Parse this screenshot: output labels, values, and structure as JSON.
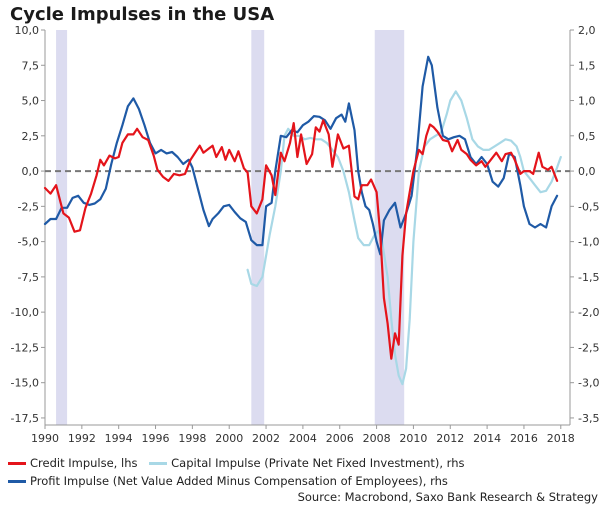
{
  "title": "Cycle Impulses in the USA",
  "source": "Source: Macrobond, Saxo Bank Research & Strategy",
  "colors": {
    "credit": "#e4141b",
    "capital": "#a8d8e6",
    "profit": "#1f5aa6",
    "recession": "#dcdcf0",
    "zero": "#777777"
  },
  "chart_data": {
    "type": "line",
    "title": "Cycle Impulses in the USA",
    "x_ticks": [
      "1990",
      "1992",
      "1994",
      "1996",
      "1998",
      "2000",
      "2002",
      "2004",
      "2006",
      "2008",
      "2010",
      "2012",
      "2014",
      "2016",
      "2018"
    ],
    "y_left_ticks": [
      "10,0",
      "7,5",
      "5,0",
      "2,5",
      "0,0",
      "-2,5",
      "-5,0",
      "-7,5",
      "-10,0",
      "-12,5",
      "-15,0",
      "-17,5"
    ],
    "y_right_ticks": [
      "2,0",
      "1,5",
      "1,0",
      "0,5",
      "0,0",
      "-0,5",
      "-1,0",
      "-1,5",
      "-2,0",
      "-2,5",
      "-3,0",
      "-3,5"
    ],
    "ylim_left": [
      -18,
      10
    ],
    "ylim_right": [
      -3.6,
      2.0
    ],
    "xlim": [
      1990,
      2018.5
    ],
    "recessions": [
      [
        1990.6,
        1991.2
      ],
      [
        2001.2,
        2001.9
      ],
      [
        2007.9,
        2009.5
      ]
    ],
    "zero_line": true,
    "series": [
      {
        "name": "Credit Impulse, lhs",
        "axis": "left",
        "points": [
          [
            1990.0,
            -1.2
          ],
          [
            1990.3,
            -1.6
          ],
          [
            1990.6,
            -1.0
          ],
          [
            1991.0,
            -3.0
          ],
          [
            1991.3,
            -3.3
          ],
          [
            1991.6,
            -4.3
          ],
          [
            1991.9,
            -4.2
          ],
          [
            1992.2,
            -2.6
          ],
          [
            1992.5,
            -1.6
          ],
          [
            1992.8,
            -0.3
          ],
          [
            1993.0,
            0.8
          ],
          [
            1993.2,
            0.4
          ],
          [
            1993.5,
            1.1
          ],
          [
            1993.8,
            0.9
          ],
          [
            1994.0,
            1.0
          ],
          [
            1994.2,
            2.0
          ],
          [
            1994.5,
            2.6
          ],
          [
            1994.8,
            2.6
          ],
          [
            1995.0,
            3.0
          ],
          [
            1995.3,
            2.4
          ],
          [
            1995.6,
            2.2
          ],
          [
            1995.9,
            1.1
          ],
          [
            1996.1,
            0.1
          ],
          [
            1996.4,
            -0.4
          ],
          [
            1996.7,
            -0.7
          ],
          [
            1997.0,
            -0.2
          ],
          [
            1997.3,
            -0.3
          ],
          [
            1997.6,
            -0.2
          ],
          [
            1997.9,
            0.8
          ],
          [
            1998.1,
            1.2
          ],
          [
            1998.4,
            1.8
          ],
          [
            1998.6,
            1.3
          ],
          [
            1998.9,
            1.6
          ],
          [
            1999.1,
            1.8
          ],
          [
            1999.3,
            1.0
          ],
          [
            1999.6,
            1.7
          ],
          [
            1999.8,
            0.8
          ],
          [
            2000.0,
            1.5
          ],
          [
            2000.3,
            0.7
          ],
          [
            2000.5,
            1.4
          ],
          [
            2000.8,
            0.2
          ],
          [
            2001.0,
            -0.1
          ],
          [
            2001.2,
            -2.5
          ],
          [
            2001.5,
            -3.0
          ],
          [
            2001.8,
            -2.0
          ],
          [
            2002.0,
            0.4
          ],
          [
            2002.3,
            -0.3
          ],
          [
            2002.5,
            -1.7
          ],
          [
            2002.8,
            1.3
          ],
          [
            2003.0,
            0.7
          ],
          [
            2003.3,
            2.0
          ],
          [
            2003.5,
            3.4
          ],
          [
            2003.7,
            1.0
          ],
          [
            2003.9,
            2.6
          ],
          [
            2004.2,
            0.5
          ],
          [
            2004.5,
            1.2
          ],
          [
            2004.7,
            3.1
          ],
          [
            2004.9,
            2.8
          ],
          [
            2005.1,
            3.6
          ],
          [
            2005.4,
            2.6
          ],
          [
            2005.6,
            0.3
          ],
          [
            2005.9,
            2.6
          ],
          [
            2006.2,
            1.6
          ],
          [
            2006.5,
            1.8
          ],
          [
            2006.8,
            -1.8
          ],
          [
            2007.0,
            -2.0
          ],
          [
            2007.2,
            -1.0
          ],
          [
            2007.5,
            -1.0
          ],
          [
            2007.7,
            -0.6
          ],
          [
            2008.0,
            -1.5
          ],
          [
            2008.2,
            -4.5
          ],
          [
            2008.4,
            -9.0
          ],
          [
            2008.6,
            -10.8
          ],
          [
            2008.8,
            -13.3
          ],
          [
            2009.0,
            -11.5
          ],
          [
            2009.2,
            -12.3
          ],
          [
            2009.4,
            -6.0
          ],
          [
            2009.6,
            -3.0
          ],
          [
            2009.8,
            -1.5
          ],
          [
            2010.0,
            0.0
          ],
          [
            2010.3,
            1.5
          ],
          [
            2010.5,
            1.2
          ],
          [
            2010.7,
            2.5
          ],
          [
            2010.9,
            3.3
          ],
          [
            2011.1,
            3.1
          ],
          [
            2011.3,
            2.8
          ],
          [
            2011.6,
            2.2
          ],
          [
            2011.9,
            2.1
          ],
          [
            2012.1,
            1.4
          ],
          [
            2012.4,
            2.2
          ],
          [
            2012.6,
            1.5
          ],
          [
            2012.9,
            1.2
          ],
          [
            2013.1,
            0.8
          ],
          [
            2013.4,
            0.4
          ],
          [
            2013.7,
            0.7
          ],
          [
            2013.9,
            0.3
          ],
          [
            2014.2,
            0.8
          ],
          [
            2014.5,
            1.3
          ],
          [
            2014.8,
            0.7
          ],
          [
            2015.0,
            1.2
          ],
          [
            2015.3,
            1.3
          ],
          [
            2015.5,
            0.8
          ],
          [
            2015.8,
            -0.2
          ],
          [
            2016.0,
            0.0
          ],
          [
            2016.3,
            0.0
          ],
          [
            2016.5,
            -0.2
          ],
          [
            2016.8,
            1.3
          ],
          [
            2017.0,
            0.3
          ],
          [
            2017.3,
            0.1
          ],
          [
            2017.5,
            0.3
          ],
          [
            2017.8,
            -0.7
          ]
        ]
      },
      {
        "name": "Capital Impulse (Private Net Fixed Investment), rhs",
        "axis": "right",
        "points": [
          [
            2001.0,
            -1.4
          ],
          [
            2001.2,
            -1.6
          ],
          [
            2001.5,
            -1.63
          ],
          [
            2001.8,
            -1.5
          ],
          [
            2002.0,
            -1.2
          ],
          [
            2002.2,
            -0.9
          ],
          [
            2002.5,
            -0.5
          ],
          [
            2002.8,
            0.0
          ],
          [
            2003.0,
            0.5
          ],
          [
            2003.2,
            0.6
          ],
          [
            2003.5,
            0.5
          ],
          [
            2003.8,
            0.5
          ],
          [
            2004.1,
            0.45
          ],
          [
            2004.4,
            0.47
          ],
          [
            2004.7,
            0.45
          ],
          [
            2005.0,
            0.45
          ],
          [
            2005.3,
            0.4
          ],
          [
            2005.6,
            0.3
          ],
          [
            2005.9,
            0.2
          ],
          [
            2006.2,
            0.0
          ],
          [
            2006.5,
            -0.3
          ],
          [
            2006.8,
            -0.7
          ],
          [
            2007.0,
            -0.95
          ],
          [
            2007.3,
            -1.05
          ],
          [
            2007.6,
            -1.05
          ],
          [
            2007.9,
            -0.9
          ],
          [
            2008.1,
            -0.85
          ],
          [
            2008.3,
            -1.0
          ],
          [
            2008.6,
            -1.5
          ],
          [
            2008.8,
            -2.1
          ],
          [
            2009.0,
            -2.6
          ],
          [
            2009.2,
            -2.9
          ],
          [
            2009.4,
            -3.02
          ],
          [
            2009.6,
            -2.8
          ],
          [
            2009.8,
            -2.1
          ],
          [
            2010.0,
            -1.0
          ],
          [
            2010.3,
            0.0
          ],
          [
            2010.6,
            0.35
          ],
          [
            2010.9,
            0.45
          ],
          [
            2011.2,
            0.5
          ],
          [
            2011.5,
            0.55
          ],
          [
            2011.8,
            0.8
          ],
          [
            2012.0,
            1.0
          ],
          [
            2012.3,
            1.13
          ],
          [
            2012.6,
            1.0
          ],
          [
            2012.9,
            0.75
          ],
          [
            2013.2,
            0.45
          ],
          [
            2013.5,
            0.35
          ],
          [
            2013.8,
            0.3
          ],
          [
            2014.1,
            0.3
          ],
          [
            2014.4,
            0.35
          ],
          [
            2014.7,
            0.4
          ],
          [
            2015.0,
            0.45
          ],
          [
            2015.3,
            0.43
          ],
          [
            2015.6,
            0.35
          ],
          [
            2015.8,
            0.2
          ],
          [
            2016.0,
            0.0
          ],
          [
            2016.3,
            -0.1
          ],
          [
            2016.6,
            -0.2
          ],
          [
            2016.9,
            -0.3
          ],
          [
            2017.2,
            -0.28
          ],
          [
            2017.5,
            -0.15
          ],
          [
            2017.8,
            0.05
          ],
          [
            2018.0,
            0.2
          ]
        ]
      },
      {
        "name": "Profit Impulse (Net Value Added Minus Compensation of Employees), rhs",
        "axis": "right",
        "points": [
          [
            1990.0,
            -0.75
          ],
          [
            1990.3,
            -0.68
          ],
          [
            1990.6,
            -0.68
          ],
          [
            1990.9,
            -0.52
          ],
          [
            1991.2,
            -0.52
          ],
          [
            1991.5,
            -0.38
          ],
          [
            1991.8,
            -0.35
          ],
          [
            1992.1,
            -0.45
          ],
          [
            1992.4,
            -0.48
          ],
          [
            1992.7,
            -0.46
          ],
          [
            1993.0,
            -0.4
          ],
          [
            1993.3,
            -0.25
          ],
          [
            1993.6,
            0.1
          ],
          [
            1993.9,
            0.4
          ],
          [
            1994.2,
            0.65
          ],
          [
            1994.5,
            0.92
          ],
          [
            1994.8,
            1.03
          ],
          [
            1995.1,
            0.88
          ],
          [
            1995.4,
            0.65
          ],
          [
            1995.7,
            0.4
          ],
          [
            1996.0,
            0.25
          ],
          [
            1996.3,
            0.3
          ],
          [
            1996.6,
            0.25
          ],
          [
            1996.9,
            0.27
          ],
          [
            1997.2,
            0.2
          ],
          [
            1997.5,
            0.1
          ],
          [
            1997.8,
            0.16
          ],
          [
            1998.0,
            0.05
          ],
          [
            1998.3,
            -0.25
          ],
          [
            1998.6,
            -0.55
          ],
          [
            1998.9,
            -0.78
          ],
          [
            1999.1,
            -0.68
          ],
          [
            1999.4,
            -0.6
          ],
          [
            1999.7,
            -0.5
          ],
          [
            2000.0,
            -0.48
          ],
          [
            2000.3,
            -0.58
          ],
          [
            2000.6,
            -0.67
          ],
          [
            2000.9,
            -0.72
          ],
          [
            2001.2,
            -0.98
          ],
          [
            2001.5,
            -1.05
          ],
          [
            2001.8,
            -1.05
          ],
          [
            2002.0,
            -0.5
          ],
          [
            2002.3,
            -0.45
          ],
          [
            2002.5,
            0.0
          ],
          [
            2002.8,
            0.5
          ],
          [
            2003.1,
            0.48
          ],
          [
            2003.4,
            0.58
          ],
          [
            2003.7,
            0.55
          ],
          [
            2004.0,
            0.65
          ],
          [
            2004.3,
            0.7
          ],
          [
            2004.6,
            0.78
          ],
          [
            2004.9,
            0.77
          ],
          [
            2005.2,
            0.72
          ],
          [
            2005.5,
            0.6
          ],
          [
            2005.8,
            0.75
          ],
          [
            2006.1,
            0.8
          ],
          [
            2006.3,
            0.7
          ],
          [
            2006.5,
            0.96
          ],
          [
            2006.8,
            0.58
          ],
          [
            2007.0,
            0.0
          ],
          [
            2007.2,
            -0.3
          ],
          [
            2007.4,
            -0.5
          ],
          [
            2007.6,
            -0.55
          ],
          [
            2007.8,
            -0.75
          ],
          [
            2008.0,
            -1.0
          ],
          [
            2008.2,
            -1.18
          ],
          [
            2008.4,
            -0.7
          ],
          [
            2008.7,
            -0.55
          ],
          [
            2009.0,
            -0.45
          ],
          [
            2009.3,
            -0.8
          ],
          [
            2009.6,
            -0.6
          ],
          [
            2009.9,
            -0.35
          ],
          [
            2010.2,
            0.3
          ],
          [
            2010.5,
            1.2
          ],
          [
            2010.8,
            1.62
          ],
          [
            2011.0,
            1.5
          ],
          [
            2011.3,
            0.9
          ],
          [
            2011.6,
            0.5
          ],
          [
            2011.9,
            0.45
          ],
          [
            2012.2,
            0.48
          ],
          [
            2012.5,
            0.5
          ],
          [
            2012.8,
            0.45
          ],
          [
            2013.1,
            0.2
          ],
          [
            2013.4,
            0.1
          ],
          [
            2013.7,
            0.2
          ],
          [
            2014.0,
            0.1
          ],
          [
            2014.3,
            -0.15
          ],
          [
            2014.6,
            -0.22
          ],
          [
            2014.9,
            -0.1
          ],
          [
            2015.2,
            0.25
          ],
          [
            2015.5,
            0.2
          ],
          [
            2015.8,
            -0.2
          ],
          [
            2016.0,
            -0.5
          ],
          [
            2016.3,
            -0.75
          ],
          [
            2016.6,
            -0.8
          ],
          [
            2016.9,
            -0.75
          ],
          [
            2017.2,
            -0.8
          ],
          [
            2017.5,
            -0.5
          ],
          [
            2017.8,
            -0.35
          ]
        ]
      }
    ],
    "legend": {
      "placement": "bottom",
      "rows": [
        [
          "Credit Impulse, lhs",
          "Capital Impulse (Private Net Fixed Investment), rhs"
        ],
        [
          "Profit Impulse (Net Value Added Minus Compensation of Employees), rhs"
        ]
      ]
    }
  }
}
